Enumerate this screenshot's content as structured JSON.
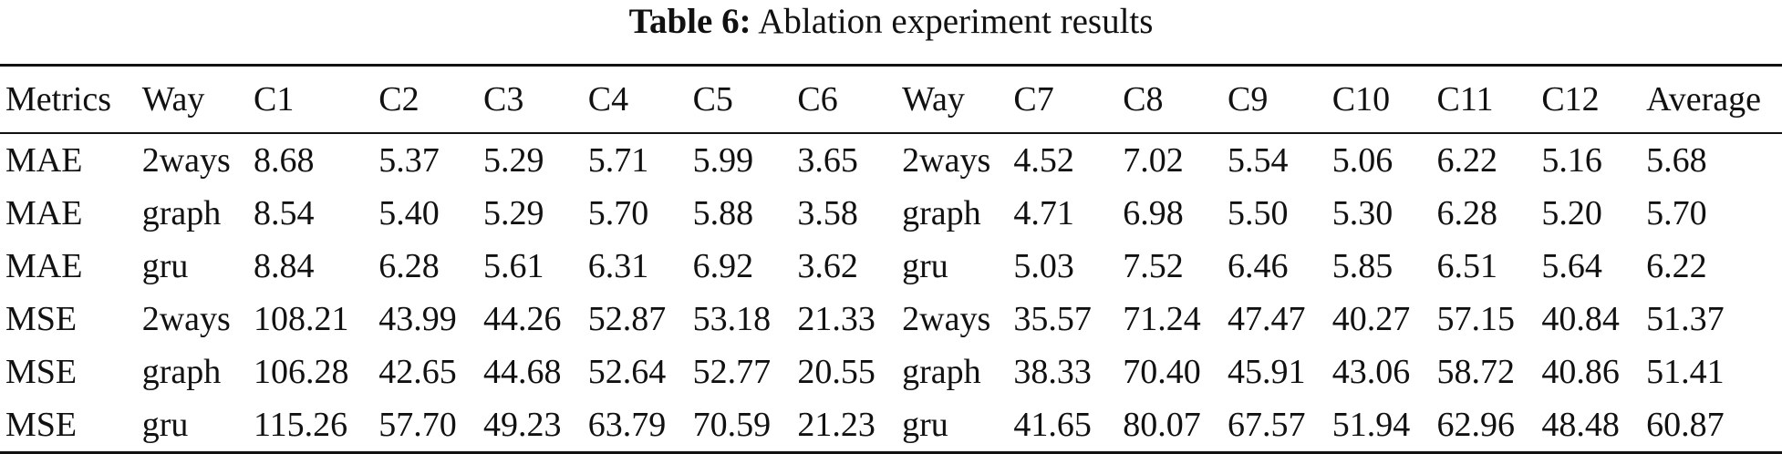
{
  "caption": {
    "label": "Table 6:",
    "text": "Ablation experiment results"
  },
  "table": {
    "headers": [
      "Metrics",
      "Way",
      "C1",
      "C2",
      "C3",
      "C4",
      "C5",
      "C6",
      "Way",
      "C7",
      "C8",
      "C9",
      "C10",
      "C11",
      "C12",
      "Average"
    ],
    "rows": [
      [
        "MAE",
        "2ways",
        "8.68",
        "5.37",
        "5.29",
        "5.71",
        "5.99",
        "3.65",
        "2ways",
        "4.52",
        "7.02",
        "5.54",
        "5.06",
        "6.22",
        "5.16",
        "5.68"
      ],
      [
        "MAE",
        "graph",
        "8.54",
        "5.40",
        "5.29",
        "5.70",
        "5.88",
        "3.58",
        "graph",
        "4.71",
        "6.98",
        "5.50",
        "5.30",
        "6.28",
        "5.20",
        "5.70"
      ],
      [
        "MAE",
        "gru",
        "8.84",
        "6.28",
        "5.61",
        "6.31",
        "6.92",
        "3.62",
        "gru",
        "5.03",
        "7.52",
        "6.46",
        "5.85",
        "6.51",
        "5.64",
        "6.22"
      ],
      [
        "MSE",
        "2ways",
        "108.21",
        "43.99",
        "44.26",
        "52.87",
        "53.18",
        "21.33",
        "2ways",
        "35.57",
        "71.24",
        "47.47",
        "40.27",
        "57.15",
        "40.84",
        "51.37"
      ],
      [
        "MSE",
        "graph",
        "106.28",
        "42.65",
        "44.68",
        "52.64",
        "52.77",
        "20.55",
        "graph",
        "38.33",
        "70.40",
        "45.91",
        "43.06",
        "58.72",
        "40.86",
        "51.41"
      ],
      [
        "MSE",
        "gru",
        "115.26",
        "57.70",
        "49.23",
        "63.79",
        "70.59",
        "21.23",
        "gru",
        "41.65",
        "80.07",
        "67.57",
        "51.94",
        "62.96",
        "48.48",
        "60.87"
      ]
    ]
  }
}
